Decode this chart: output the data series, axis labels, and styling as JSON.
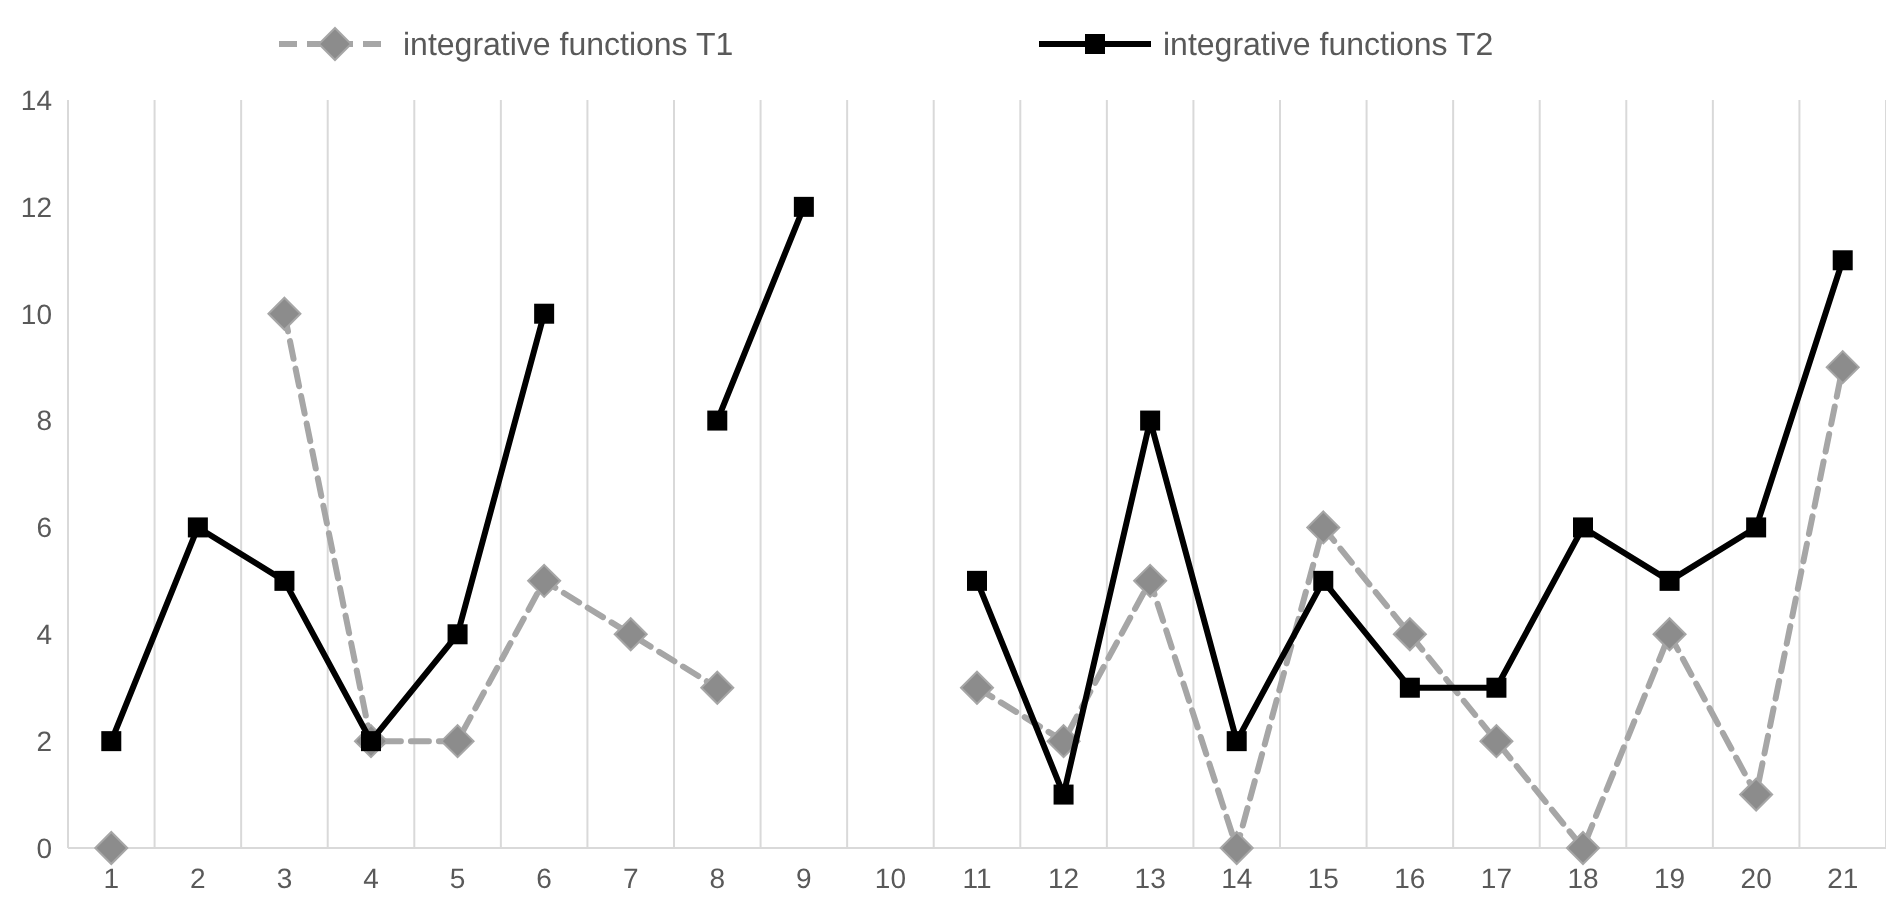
{
  "chart_data": {
    "type": "line",
    "categories": [
      "1",
      "2",
      "3",
      "4",
      "5",
      "6",
      "7",
      "8",
      "9",
      "10",
      "11",
      "12",
      "13",
      "14",
      "15",
      "16",
      "17",
      "18",
      "19",
      "20",
      "21"
    ],
    "series": [
      {
        "name": "integrative functions T1",
        "color": "#a6a6a6",
        "marker": "diamond",
        "line_style": "dashed",
        "values": [
          0,
          null,
          10,
          2,
          2,
          5,
          4,
          3,
          null,
          null,
          3,
          2,
          5,
          0,
          6,
          4,
          2,
          0,
          4,
          1,
          9
        ]
      },
      {
        "name": "integrative functions T2",
        "color": "#000000",
        "marker": "square",
        "line_style": "solid",
        "values": [
          2,
          6,
          5,
          2,
          4,
          10,
          null,
          8,
          12,
          null,
          5,
          1,
          8,
          2,
          5,
          3,
          3,
          6,
          5,
          6,
          11
        ]
      }
    ],
    "ylim": [
      0,
      14
    ],
    "yticks": [
      0,
      2,
      4,
      6,
      8,
      10,
      12,
      14
    ],
    "grid": "x",
    "legend": "top"
  }
}
